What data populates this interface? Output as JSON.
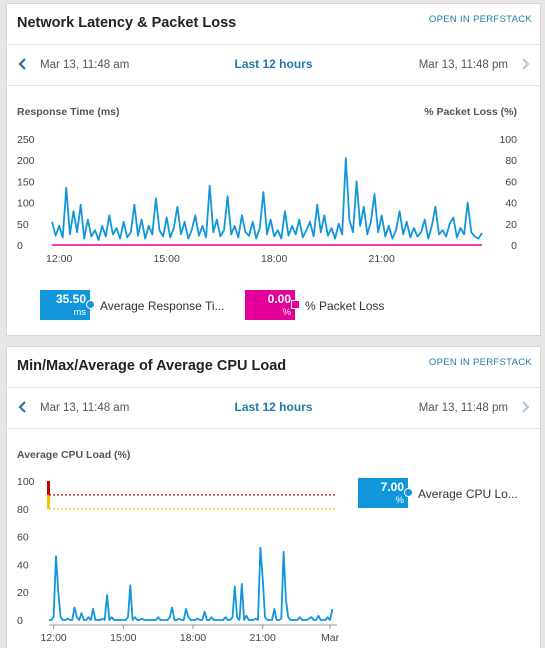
{
  "colors": {
    "accent": "#1f7aa8",
    "response_series": "#1296db",
    "packet_loss_series": "#e6009a",
    "critical": "#c00000",
    "warning": "#f5c200"
  },
  "icons": {
    "prev": "chevron-left-icon",
    "next": "chevron-right-icon"
  },
  "card1": {
    "title": "Network Latency & Packet Loss",
    "open_link": "OPEN IN PERFSTACK",
    "time_start": "Mar 13, 11:48 am",
    "time_range": "Last 12 hours",
    "time_end": "Mar 13, 11:48 pm",
    "legend": [
      {
        "value": "35.50",
        "unit": "ms",
        "label": "Average Response Ti..."
      },
      {
        "value": "0.00",
        "unit": "%",
        "label": "% Packet Loss"
      }
    ]
  },
  "card2": {
    "title": "Min/Max/Average of Average CPU Load",
    "open_link": "OPEN IN PERFSTACK",
    "time_start": "Mar 13, 11:48 am",
    "time_range": "Last 12 hours",
    "time_end": "Mar 13, 11:48 pm",
    "legend": [
      {
        "value": "7.00",
        "unit": "%",
        "label": "Average CPU Lo..."
      }
    ]
  },
  "chart_data": [
    {
      "type": "line",
      "ylabel": "Response Time (ms)",
      "y2label": "% Packet Loss (%)",
      "ylim": [
        0,
        250
      ],
      "y2lim": [
        0,
        100
      ],
      "yticks": [
        "250",
        "200",
        "150",
        "100",
        "50",
        "0"
      ],
      "y2ticks": [
        "100",
        "80",
        "60",
        "40",
        "20",
        "0"
      ],
      "xlim": [
        11.8,
        23.8
      ],
      "xticks": [
        {
          "x": 12,
          "label": "12:00"
        },
        {
          "x": 15,
          "label": "15:00"
        },
        {
          "x": 18,
          "label": "18:00"
        },
        {
          "x": 21,
          "label": "21:00"
        }
      ],
      "series": [
        {
          "name": "Average Response Ti...",
          "axis": "left",
          "x": [
            11.8,
            11.9,
            12.0,
            12.1,
            12.2,
            12.3,
            12.4,
            12.5,
            12.6,
            12.7,
            12.8,
            12.9,
            13.0,
            13.1,
            13.2,
            13.3,
            13.4,
            13.5,
            13.6,
            13.7,
            13.8,
            13.9,
            14.0,
            14.1,
            14.2,
            14.3,
            14.4,
            14.5,
            14.6,
            14.7,
            14.8,
            14.9,
            15.0,
            15.1,
            15.2,
            15.3,
            15.4,
            15.5,
            15.6,
            15.7,
            15.8,
            15.9,
            16.0,
            16.1,
            16.2,
            16.3,
            16.4,
            16.5,
            16.6,
            16.7,
            16.8,
            16.9,
            17.0,
            17.1,
            17.2,
            17.3,
            17.4,
            17.5,
            17.6,
            17.7,
            17.8,
            17.9,
            18.0,
            18.1,
            18.2,
            18.3,
            18.4,
            18.5,
            18.6,
            18.7,
            18.8,
            18.9,
            19.0,
            19.1,
            19.2,
            19.3,
            19.4,
            19.5,
            19.6,
            19.7,
            19.8,
            19.9,
            20.0,
            20.1,
            20.2,
            20.3,
            20.4,
            20.5,
            20.6,
            20.7,
            20.8,
            20.9,
            21.0,
            21.1,
            21.2,
            21.3,
            21.4,
            21.5,
            21.6,
            21.7,
            21.8,
            21.9,
            22.0,
            22.1,
            22.2,
            22.3,
            22.4,
            22.5,
            22.6,
            22.7,
            22.8,
            22.9,
            23.0,
            23.1,
            23.2,
            23.3,
            23.4,
            23.5,
            23.6,
            23.7,
            23.8
          ],
          "values": [
            55,
            22,
            45,
            18,
            135,
            25,
            80,
            30,
            95,
            15,
            60,
            20,
            35,
            12,
            45,
            20,
            70,
            25,
            40,
            15,
            55,
            18,
            30,
            95,
            22,
            60,
            15,
            45,
            25,
            110,
            35,
            20,
            65,
            18,
            40,
            90,
            25,
            55,
            15,
            35,
            70,
            22,
            45,
            18,
            140,
            30,
            60,
            20,
            35,
            115,
            25,
            45,
            18,
            70,
            30,
            22,
            55,
            15,
            40,
            125,
            25,
            60,
            20,
            35,
            15,
            80,
            22,
            45,
            25,
            60,
            18,
            35,
            55,
            20,
            95,
            30,
            70,
            22,
            40,
            15,
            50,
            25,
            205,
            60,
            30,
            150,
            45,
            90,
            25,
            55,
            120,
            30,
            70,
            20,
            45,
            15,
            35,
            80,
            25,
            55,
            18,
            40,
            20,
            30,
            60,
            15,
            45,
            90,
            25,
            35,
            20,
            50,
            65,
            18,
            40,
            25,
            100,
            30,
            20,
            15,
            28
          ],
          "color": "#1296db"
        },
        {
          "name": "% Packet Loss",
          "axis": "right",
          "x": [
            11.8,
            23.8
          ],
          "values": [
            0,
            0
          ],
          "color": "#e6009a"
        }
      ]
    },
    {
      "type": "line",
      "ylabel": "Average CPU Load (%)",
      "ylim": [
        0,
        100
      ],
      "yticks": [
        "100",
        "80",
        "60",
        "40",
        "20",
        "0"
      ],
      "xlim": [
        11.8,
        24.2
      ],
      "xticks": [
        {
          "x": 12,
          "label": "12:00"
        },
        {
          "x": 15,
          "label": "15:00"
        },
        {
          "x": 18,
          "label": "18:00"
        },
        {
          "x": 21,
          "label": "21:00"
        },
        {
          "x": 23.9,
          "label": "Mar"
        }
      ],
      "thresholds": [
        {
          "level": "critical",
          "value": 90
        },
        {
          "level": "warning",
          "value": 80
        }
      ],
      "series": [
        {
          "name": "Average CPU Lo...",
          "x": [
            11.8,
            11.9,
            12.0,
            12.1,
            12.2,
            12.3,
            12.4,
            12.5,
            12.6,
            12.7,
            12.8,
            12.9,
            13.0,
            13.1,
            13.2,
            13.3,
            13.4,
            13.5,
            13.6,
            13.7,
            13.8,
            13.9,
            14.0,
            14.1,
            14.2,
            14.3,
            14.4,
            14.5,
            14.6,
            14.7,
            14.8,
            14.9,
            15.0,
            15.1,
            15.2,
            15.3,
            15.4,
            15.5,
            15.6,
            15.7,
            15.8,
            15.9,
            16.0,
            16.1,
            16.2,
            16.3,
            16.4,
            16.5,
            16.6,
            16.7,
            16.8,
            16.9,
            17.0,
            17.1,
            17.2,
            17.3,
            17.4,
            17.5,
            17.6,
            17.7,
            17.8,
            17.9,
            18.0,
            18.1,
            18.2,
            18.3,
            18.4,
            18.5,
            18.6,
            18.7,
            18.8,
            18.9,
            19.0,
            19.1,
            19.2,
            19.3,
            19.4,
            19.5,
            19.6,
            19.7,
            19.8,
            19.9,
            20.0,
            20.1,
            20.2,
            20.3,
            20.4,
            20.5,
            20.6,
            20.7,
            20.8,
            20.9,
            21.0,
            21.1,
            21.2,
            21.3,
            21.4,
            21.5,
            21.6,
            21.7,
            21.8,
            21.9,
            22.0,
            22.1,
            22.2,
            22.3,
            22.4,
            22.5,
            22.6,
            22.7,
            22.8,
            22.9,
            23.0,
            23.1,
            23.2,
            23.3,
            23.4,
            23.5,
            23.6,
            23.7,
            23.8,
            23.9,
            24.0
          ],
          "values": [
            0,
            0,
            2,
            46,
            20,
            2,
            0,
            0,
            1,
            0,
            0,
            9,
            2,
            0,
            5,
            0,
            0,
            2,
            0,
            8,
            0,
            0,
            0,
            1,
            0,
            18,
            0,
            2,
            0,
            0,
            0,
            0,
            0,
            0,
            2,
            25,
            0,
            2,
            0,
            0,
            1,
            0,
            0,
            0,
            0,
            0,
            0,
            2,
            0,
            0,
            0,
            0,
            2,
            9,
            0,
            0,
            1,
            0,
            0,
            8,
            2,
            0,
            0,
            0,
            1,
            0,
            0,
            6,
            0,
            0,
            2,
            0,
            0,
            0,
            0,
            0,
            2,
            0,
            0,
            2,
            24,
            2,
            0,
            26,
            0,
            3,
            0,
            0,
            0,
            1,
            0,
            52,
            30,
            2,
            0,
            0,
            0,
            8,
            0,
            0,
            1,
            49,
            15,
            2,
            0,
            0,
            0,
            0,
            2,
            0,
            0,
            0,
            1,
            2,
            0,
            0,
            3,
            0,
            0,
            0,
            2,
            0,
            8
          ],
          "color": "#1296db"
        }
      ]
    }
  ]
}
